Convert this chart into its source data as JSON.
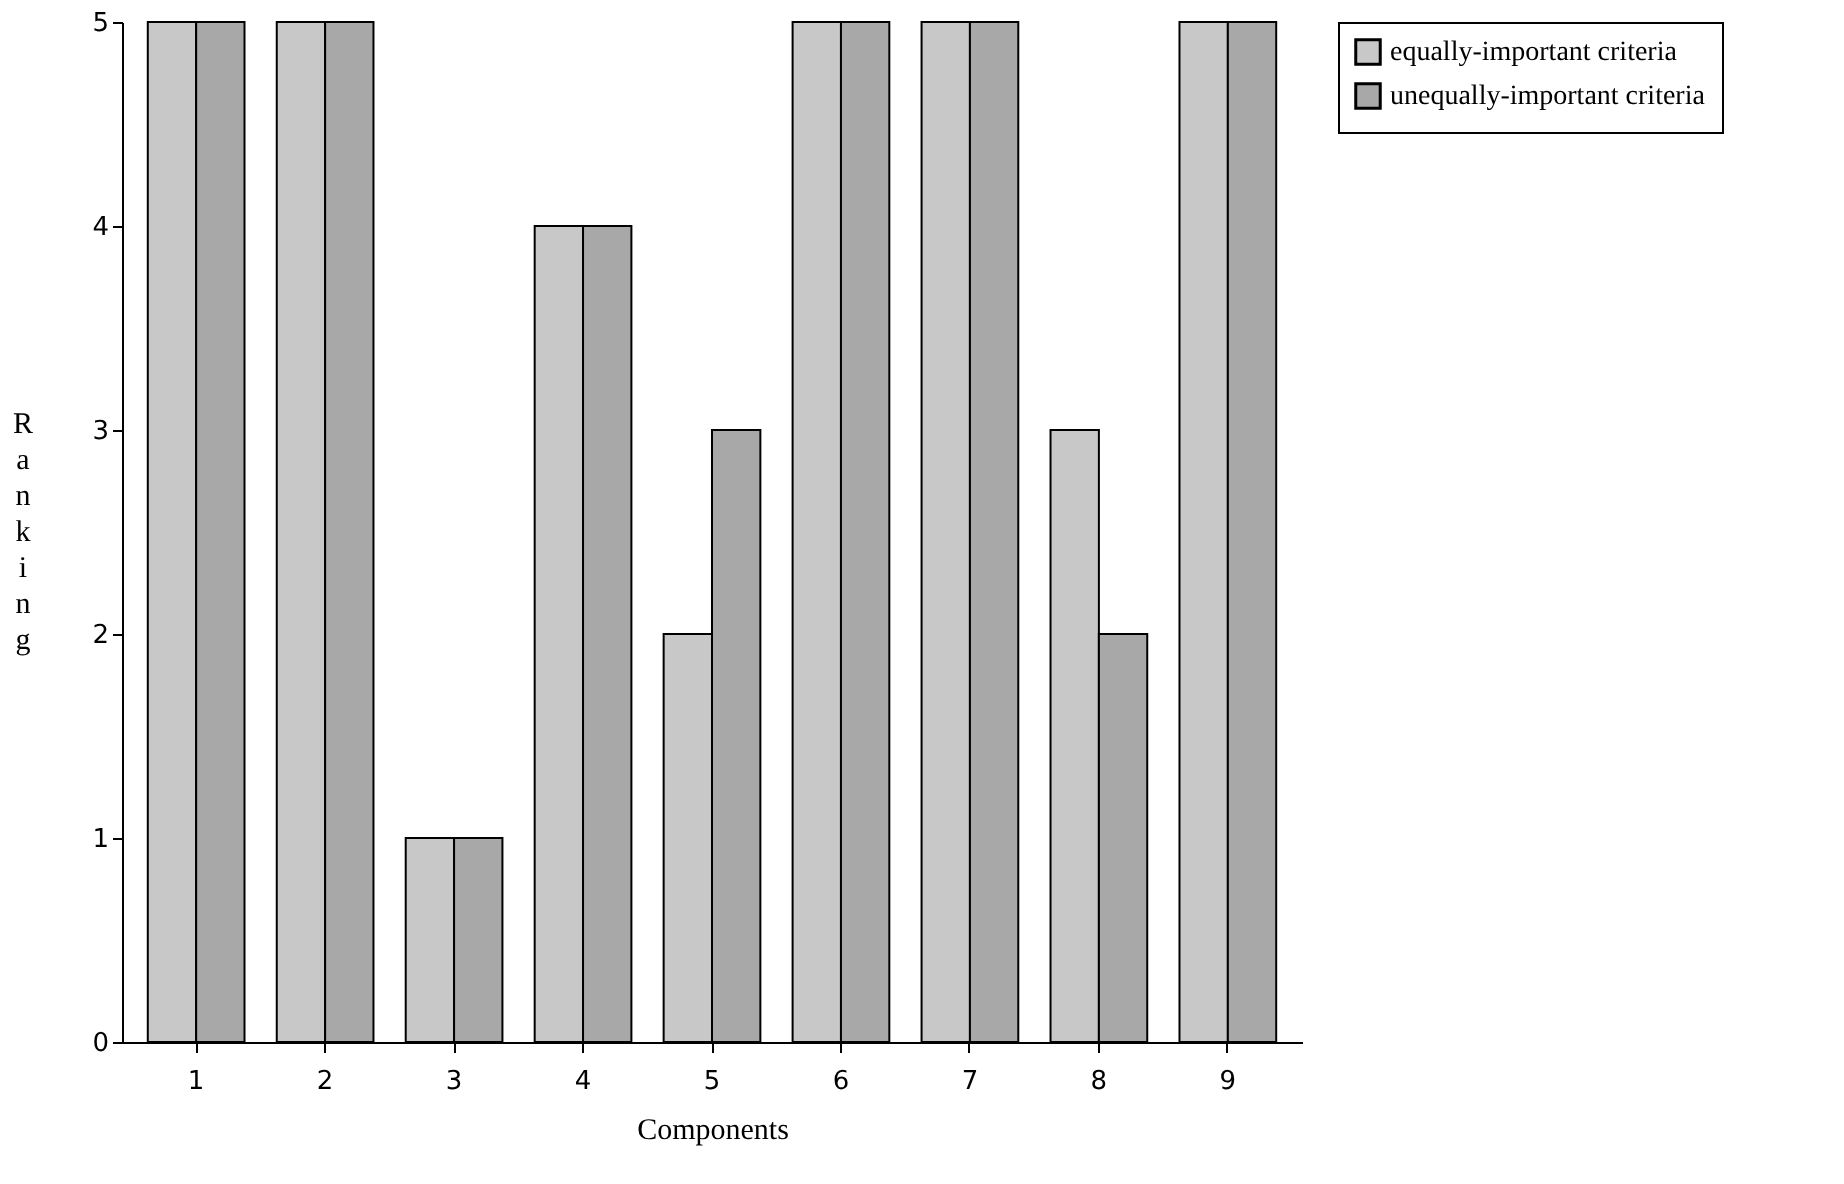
{
  "chart_data": {
    "type": "bar",
    "xlabel": "Components",
    "ylabel": "Ranking",
    "categories": [
      "1",
      "2",
      "3",
      "4",
      "5",
      "6",
      "7",
      "8",
      "9"
    ],
    "series": [
      {
        "name": "equally-important criteria",
        "color": "#c8c8c8",
        "values": [
          5,
          5,
          1,
          4,
          2,
          5,
          5,
          3,
          5
        ]
      },
      {
        "name": "unequally-important criteria",
        "color": "#a8a8a8",
        "values": [
          5,
          5,
          1,
          4,
          3,
          5,
          5,
          2,
          5
        ]
      }
    ],
    "ylim": [
      0,
      5
    ],
    "yticks": [
      0,
      1,
      2,
      3,
      4,
      5
    ],
    "grid": false,
    "legend": "right"
  }
}
